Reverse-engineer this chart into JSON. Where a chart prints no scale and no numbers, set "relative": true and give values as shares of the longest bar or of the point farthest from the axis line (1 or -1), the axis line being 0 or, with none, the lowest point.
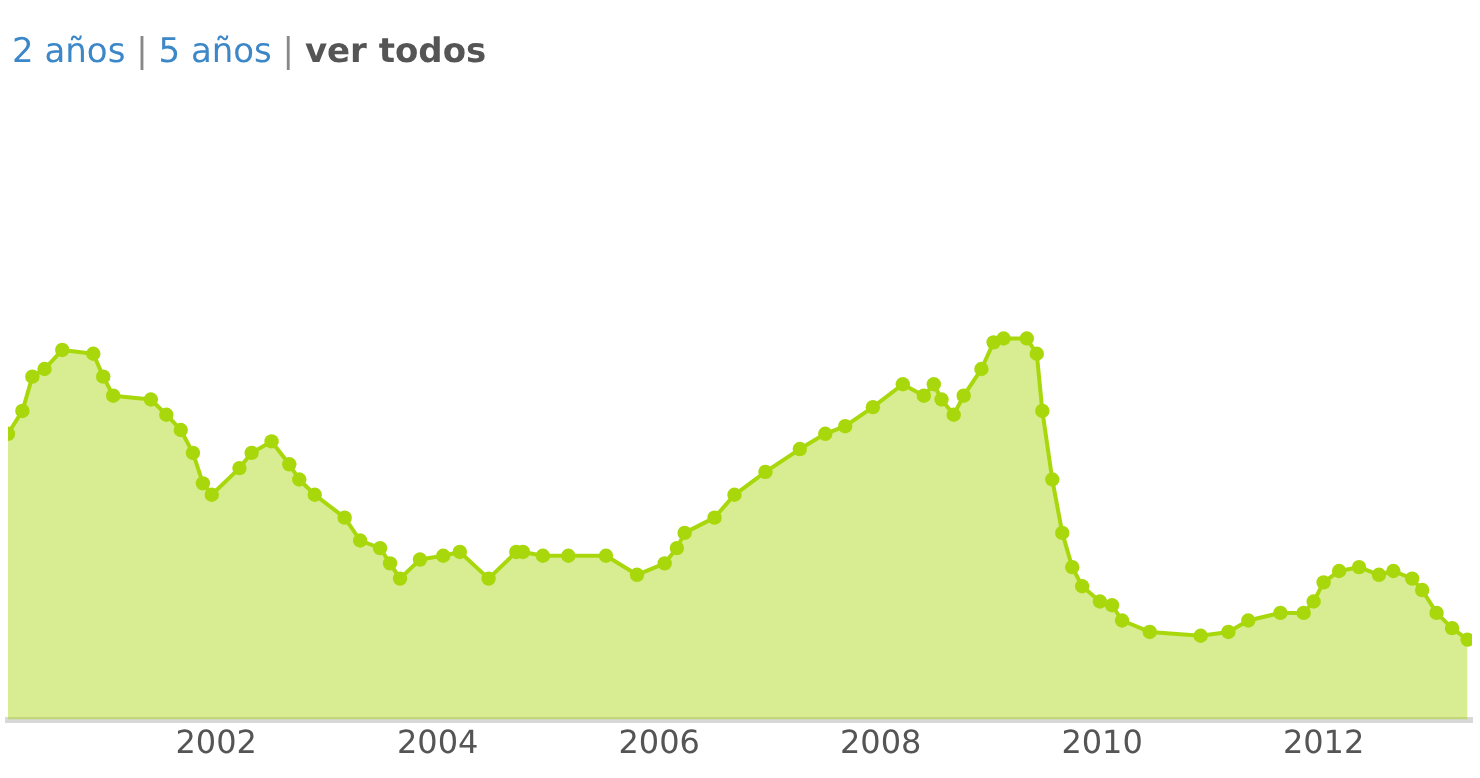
{
  "chart_data": {
    "type": "area",
    "title": "2 años | 5 años | ver todos",
    "relative": true,
    "marker": "circle",
    "xlim": [
      2000.12,
      2013.34
    ],
    "xticks": [
      2002,
      2004,
      2006,
      2008,
      2010,
      2012
    ],
    "x": [
      2000.12,
      2000.25,
      2000.34,
      2000.45,
      2000.61,
      2000.89,
      2000.98,
      2001.07,
      2001.41,
      2001.55,
      2001.68,
      2001.79,
      2001.88,
      2001.96,
      2002.21,
      2002.32,
      2002.5,
      2002.66,
      2002.75,
      2002.89,
      2003.16,
      2003.3,
      2003.48,
      2003.57,
      2003.66,
      2003.84,
      2004.05,
      2004.2,
      2004.46,
      2004.71,
      2004.77,
      2004.95,
      2005.18,
      2005.52,
      2005.8,
      2006.05,
      2006.16,
      2006.23,
      2006.5,
      2006.68,
      2006.96,
      2007.27,
      2007.5,
      2007.68,
      2007.93,
      2008.2,
      2008.39,
      2008.48,
      2008.55,
      2008.66,
      2008.75,
      2008.91,
      2009.02,
      2009.11,
      2009.32,
      2009.41,
      2009.46,
      2009.55,
      2009.64,
      2009.73,
      2009.82,
      2009.98,
      2010.09,
      2010.18,
      2010.43,
      2010.89,
      2011.14,
      2011.32,
      2011.61,
      2011.82,
      2011.91,
      2012.0,
      2012.14,
      2012.32,
      2012.5,
      2012.63,
      2012.8,
      2012.89,
      2013.02,
      2013.16,
      2013.3
    ],
    "series": [
      {
        "color": "#a8d80c",
        "values": [
          0.75,
          0.81,
          0.9,
          0.92,
          0.97,
          0.96,
          0.9,
          0.85,
          0.84,
          0.8,
          0.76,
          0.7,
          0.62,
          0.59,
          0.66,
          0.7,
          0.73,
          0.67,
          0.63,
          0.59,
          0.53,
          0.47,
          0.45,
          0.41,
          0.37,
          0.42,
          0.43,
          0.44,
          0.37,
          0.44,
          0.44,
          0.43,
          0.43,
          0.43,
          0.38,
          0.41,
          0.45,
          0.49,
          0.53,
          0.59,
          0.65,
          0.71,
          0.75,
          0.77,
          0.82,
          0.88,
          0.85,
          0.88,
          0.84,
          0.8,
          0.85,
          0.92,
          0.99,
          1.0,
          1.0,
          0.96,
          0.81,
          0.63,
          0.49,
          0.4,
          0.35,
          0.31,
          0.3,
          0.26,
          0.23,
          0.22,
          0.23,
          0.26,
          0.28,
          0.28,
          0.31,
          0.36,
          0.39,
          0.4,
          0.38,
          0.39,
          0.37,
          0.34,
          0.28,
          0.24,
          0.21
        ]
      }
    ]
  }
}
